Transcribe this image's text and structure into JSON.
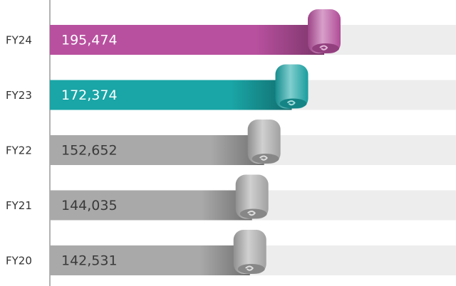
{
  "chart_data": {
    "type": "bar",
    "categories": [
      "FY24",
      "FY23",
      "FY22",
      "FY21",
      "FY20"
    ],
    "values": [
      195474,
      172374,
      152652,
      144035,
      142531
    ],
    "value_labels": [
      "195,474",
      "172,374",
      "152,652",
      "144,035",
      "142,531"
    ],
    "colors": [
      "#b8509f",
      "#1aa5a6",
      "#a9a9a9",
      "#a9a9a9",
      "#a9a9a9"
    ]
  }
}
